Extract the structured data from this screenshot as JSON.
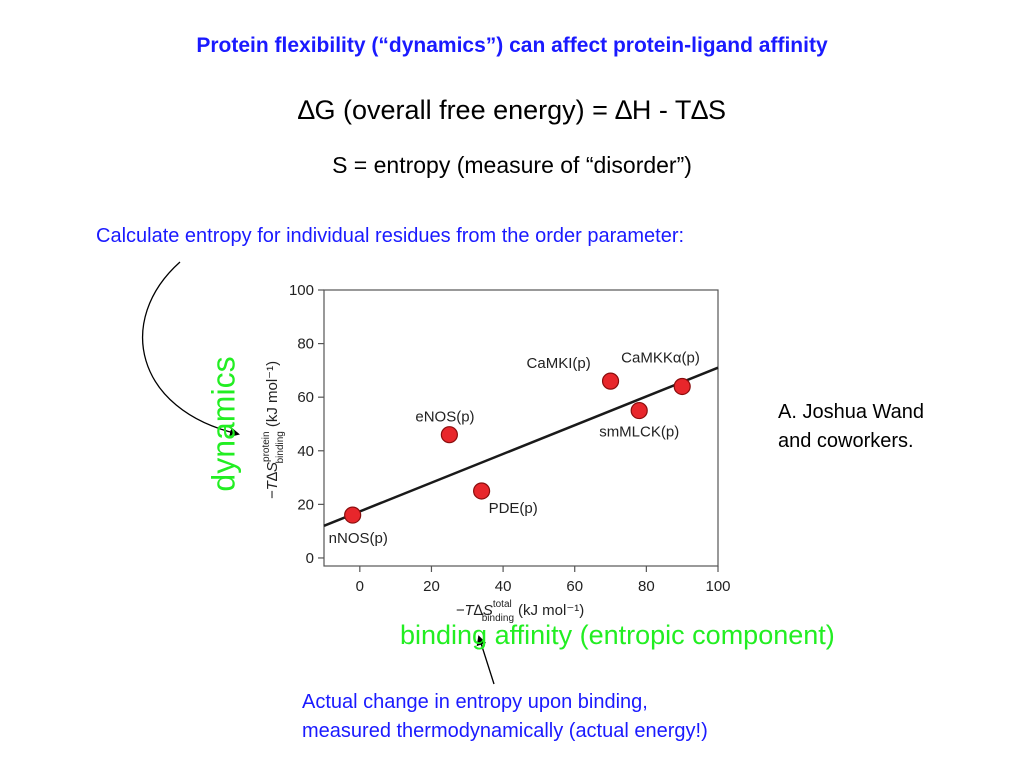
{
  "slide": {
    "title": "Protein flexibility (“dynamics”) can affect protein-ligand affinity",
    "equation": "∆G (overall free energy) = ∆H - T∆S",
    "entropy_def": "S = entropy  (measure of “disorder”)",
    "calc_text": "Calculate entropy for individual residues from the order parameter:",
    "credit_line1": "A. Joshua Wand",
    "credit_line2": "and coworkers.",
    "dynamics_label": "dynamics",
    "binding_label": "binding affinity (entropic component)",
    "actual_line1": "Actual change in entropy upon binding,",
    "actual_line2": "measured thermodynamically (actual energy!)",
    "colors": {
      "title": "#1a1aff",
      "annotation_green": "#22ee22",
      "point_fill": "#e8262b"
    }
  },
  "chart_data": {
    "type": "scatter",
    "xlabel": "−T∆S",
    "xlabel_sup": "total",
    "xlabel_sub": "binding",
    "xlabel_unit": "(kJ mol⁻¹)",
    "ylabel": "−T∆S",
    "ylabel_sup": "protein",
    "ylabel_sub": "binding",
    "ylabel_unit": "(kJ mol⁻¹)",
    "xlim": [
      -10,
      100
    ],
    "ylim": [
      -3,
      100
    ],
    "xticks": [
      0,
      20,
      40,
      60,
      80,
      100
    ],
    "yticks": [
      0,
      20,
      40,
      60,
      80,
      100
    ],
    "points": [
      {
        "label": "nNOS(p)",
        "x": -2,
        "y": 16
      },
      {
        "label": "eNOS(p)",
        "x": 25,
        "y": 46
      },
      {
        "label": "PDE(p)",
        "x": 34,
        "y": 25
      },
      {
        "label": "CaMKI(p)",
        "x": 70,
        "y": 66
      },
      {
        "label": "smMLCK(p)",
        "x": 78,
        "y": 55
      },
      {
        "label": "CaMKKα(p)",
        "x": 90,
        "y": 64
      }
    ],
    "fit_line": {
      "x": [
        -10,
        100
      ],
      "y": [
        12,
        71
      ]
    },
    "grid": false
  }
}
